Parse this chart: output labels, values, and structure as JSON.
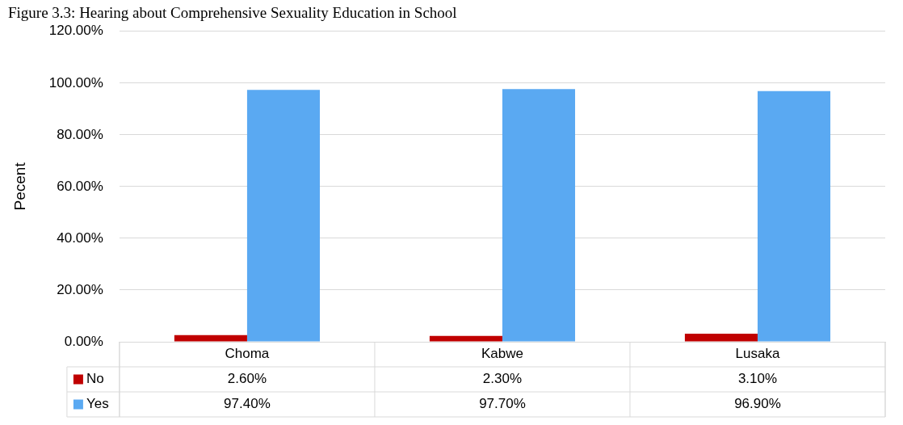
{
  "chart_data": {
    "type": "bar",
    "title": "Figure 3.3: Hearing about Comprehensive Sexuality Education in School",
    "ylabel": "Pecent",
    "categories": [
      "Choma",
      "Kabwe",
      "Lusaka"
    ],
    "series": [
      {
        "name": "No",
        "color": "#c00000",
        "values": [
          2.6,
          2.3,
          3.1
        ]
      },
      {
        "name": "Yes",
        "color": "#5aa9f2",
        "values": [
          97.4,
          97.7,
          96.9
        ]
      }
    ],
    "ylim": [
      0,
      120
    ],
    "yticks": [
      {
        "value": 0,
        "label": "0.00%"
      },
      {
        "value": 20,
        "label": "20.00%"
      },
      {
        "value": 40,
        "label": "40.00%"
      },
      {
        "value": 60,
        "label": "60.00%"
      },
      {
        "value": 80,
        "label": "80.00%"
      },
      {
        "value": 100,
        "label": "100.00%"
      },
      {
        "value": 120,
        "label": "120.00%"
      }
    ],
    "value_labels": [
      [
        "2.60%",
        "2.30%",
        "3.10%"
      ],
      [
        "97.40%",
        "97.70%",
        "96.90%"
      ]
    ],
    "grid": "y",
    "legend": "bottom"
  }
}
